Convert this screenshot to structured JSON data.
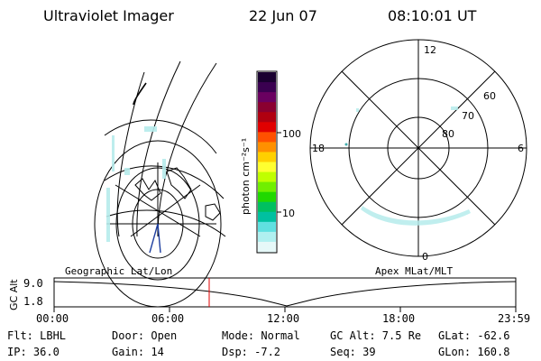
{
  "header": {
    "instrument": "Ultraviolet Imager",
    "date": "22 Jun 07",
    "time": "08:10:01 UT"
  },
  "colorbar": {
    "label": "photon cm⁻²s⁻¹",
    "ticks": [
      "100",
      "10"
    ],
    "colors": [
      "#1a0030",
      "#3a0050",
      "#6a0060",
      "#8a0030",
      "#b00010",
      "#e00000",
      "#ff5000",
      "#ff9000",
      "#ffd000",
      "#ffff30",
      "#c0ff00",
      "#70ef00",
      "#20d800",
      "#00c060",
      "#00c0a0",
      "#60e0e0",
      "#b0f0f0",
      "#e6f8f8"
    ]
  },
  "polar_plot": {
    "mlt_labels": [
      "12",
      "18",
      "6",
      "0"
    ],
    "lat_labels": [
      "60",
      "70",
      "80"
    ]
  },
  "timeline": {
    "left_label": "Geographic Lat/Lon",
    "right_label": "Apex MLat/MLT",
    "axis_title": "GC Alt",
    "y_ticks": [
      "9.0",
      "1.8"
    ],
    "x_ticks": [
      "00:00",
      "06:00",
      "12:00",
      "18:00",
      "23:59"
    ],
    "marker_color": "#e00000"
  },
  "footer": {
    "filter": "Flt: LBHL",
    "ip": "IP: 36.0",
    "door": "Door: Open",
    "gain": "Gain: 14",
    "mode": "Mode: Normal",
    "dsp": "Dsp:   -7.2",
    "gc_alt": "GC Alt: 7.5 Re",
    "seq": "Seq: 39",
    "glat": "GLat: -62.6",
    "glon": "GLon: 160.8"
  }
}
